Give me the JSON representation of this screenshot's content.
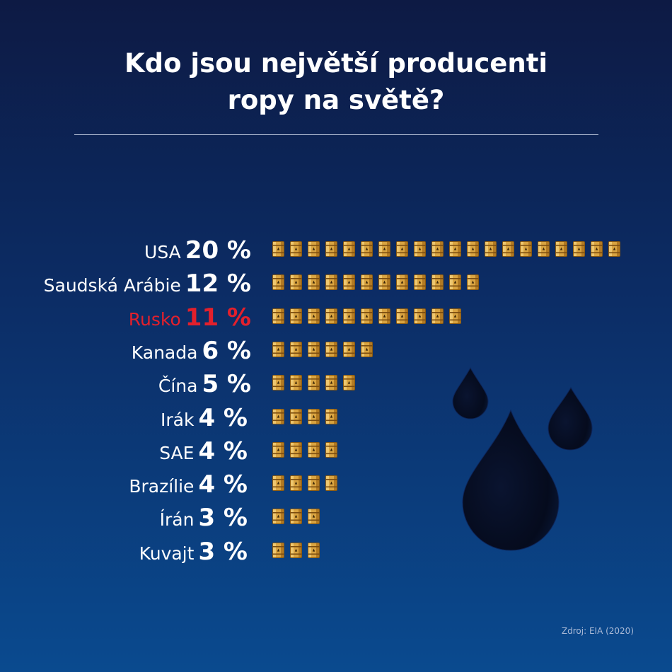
{
  "title": {
    "line1": "Kdo jsou největší producenti",
    "line2": "ropy na světě?"
  },
  "chart_data": {
    "type": "bar",
    "title": "Kdo jsou největší producenti ropy na světě?",
    "unit": "%",
    "highlight_color": "#e3202c",
    "categories": [
      "USA",
      "Saudská Arábie",
      "Rusko",
      "Kanada",
      "Čína",
      "Irák",
      "SAE",
      "Brazílie",
      "Írán",
      "Kuvajt"
    ],
    "values": [
      20,
      12,
      11,
      6,
      5,
      4,
      4,
      4,
      3,
      3
    ],
    "value_labels": [
      "20 %",
      "12 %",
      "11 %",
      "6 %",
      "5 %",
      "4 %",
      "4 %",
      "4 %",
      "3 %",
      "3 %"
    ],
    "barrel_counts": [
      20,
      12,
      11,
      6,
      5,
      4,
      4,
      4,
      3,
      3
    ],
    "highlighted": [
      "Rusko"
    ]
  },
  "source": "Zdroj: EIA (2020)",
  "icons": {
    "barrel": "oil-barrel-icon",
    "drop": "oil-drop-icon"
  }
}
